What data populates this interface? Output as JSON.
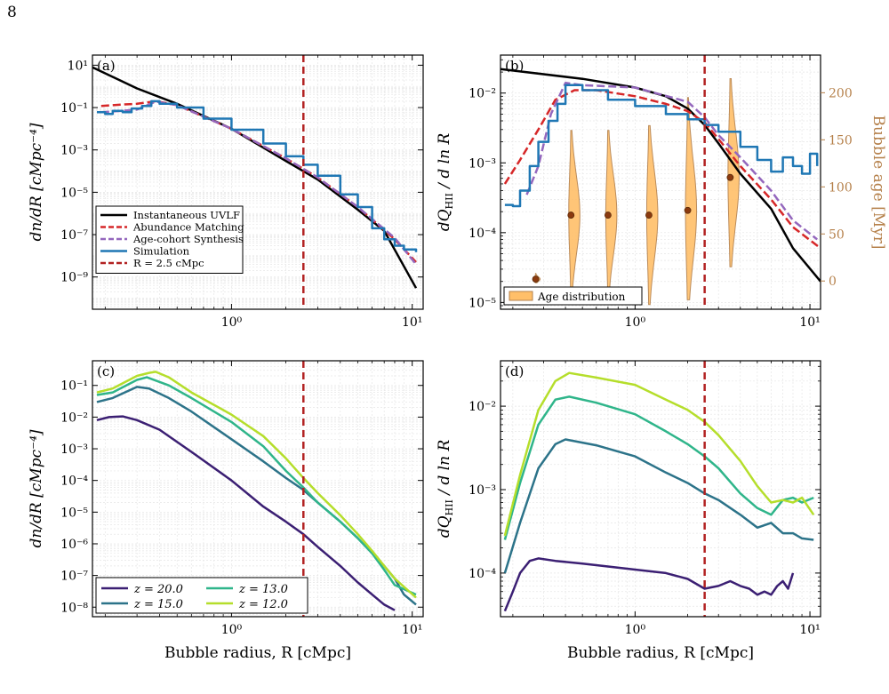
{
  "page": {
    "number": "8"
  },
  "colors": {
    "uvlf": "#000000",
    "abundance": "#d62728",
    "agecohort": "#9467bd",
    "simulation": "#1f77b4",
    "ref_line": "#b22222",
    "violin": "#ffbf69",
    "violin_edge": "#b5804a",
    "age_axis": "#b5804a",
    "z20": "#3b1f73",
    "z15": "#2c7389",
    "z13": "#2fb58a",
    "z12": "#b5de2b"
  },
  "chart_data": [
    {
      "panel": "(a)",
      "type": "line",
      "xscale": "log",
      "yscale": "log",
      "xlim": [
        0.17,
        11.5
      ],
      "ylim": [
        3e-11,
        30
      ],
      "xlabel": "",
      "ylabel": "dn/dR [cMpc⁻⁴]",
      "xticks": [
        {
          "v": 1,
          "label": "10⁰"
        },
        {
          "v": 10,
          "label": "10¹"
        }
      ],
      "yticks": [
        {
          "v": 10,
          "label": "10¹"
        },
        {
          "v": 0.1,
          "label": "10⁻¹"
        },
        {
          "v": 0.001,
          "label": "10⁻³"
        },
        {
          "v": 1e-05,
          "label": "10⁻⁵"
        },
        {
          "v": 1e-07,
          "label": "10⁻⁷"
        },
        {
          "v": 1e-09,
          "label": "10⁻⁹"
        }
      ],
      "vline": 2.5,
      "legend": {
        "placement": "lower-left",
        "entries": [
          "Instantaneous UVLF",
          "Abundance Matching",
          "Age-cohort Synthesis",
          "Simulation",
          "R = 2.5 cMpc"
        ]
      },
      "series": [
        {
          "name": "Instantaneous UVLF",
          "style": "solid",
          "color": "uvlf",
          "x": [
            0.17,
            0.3,
            0.5,
            1,
            2,
            3,
            5,
            7,
            10.5
          ],
          "y": [
            8,
            0.8,
            0.15,
            0.01,
            0.0003,
            4e-05,
            1.5e-06,
            1.5e-07,
            3e-10
          ]
        },
        {
          "name": "Abundance Matching",
          "style": "dashed",
          "color": "abundance",
          "x": [
            0.19,
            0.25,
            0.3,
            0.38,
            0.5,
            1,
            2,
            3,
            5,
            8,
            10.5
          ],
          "y": [
            0.12,
            0.14,
            0.15,
            0.2,
            0.13,
            0.01,
            0.0004,
            5e-05,
            2e-06,
            6e-08,
            5e-09
          ]
        },
        {
          "name": "Age-cohort Synthesis",
          "style": "dashed",
          "color": "agecohort",
          "x": [
            0.19,
            0.25,
            0.3,
            0.38,
            0.5,
            1,
            2,
            3,
            5,
            8,
            10.5
          ],
          "y": [
            0.06,
            0.07,
            0.08,
            0.19,
            0.13,
            0.01,
            0.0004,
            5e-05,
            2e-06,
            7e-08,
            4e-09
          ]
        },
        {
          "name": "Simulation",
          "style": "steps",
          "color": "simulation",
          "x": [
            0.18,
            0.2,
            0.22,
            0.25,
            0.28,
            0.32,
            0.36,
            0.4,
            0.5,
            0.7,
            1,
            1.5,
            2,
            2.5,
            3,
            4,
            5,
            6,
            7,
            8,
            9,
            10.5
          ],
          "y": [
            0.06,
            0.05,
            0.07,
            0.06,
            0.09,
            0.12,
            0.2,
            0.15,
            0.1,
            0.03,
            0.009,
            0.002,
            0.0005,
            0.0002,
            6e-05,
            8e-06,
            2e-06,
            2e-07,
            6e-08,
            3e-08,
            2e-08,
            1.5e-08
          ]
        }
      ]
    },
    {
      "panel": "(b)",
      "type": "line",
      "xscale": "log",
      "yscale": "log",
      "xlim": [
        0.17,
        11.5
      ],
      "ylim": [
        8e-06,
        0.035
      ],
      "xlabel": "",
      "ylabel": "dQ_HII / d ln R",
      "xticks": [
        {
          "v": 1,
          "label": "10⁰"
        },
        {
          "v": 10,
          "label": "10¹"
        }
      ],
      "yticks": [
        {
          "v": 0.01,
          "label": "10⁻²"
        },
        {
          "v": 0.001,
          "label": "10⁻³"
        },
        {
          "v": 0.0001,
          "label": "10⁻⁴"
        },
        {
          "v": 1e-05,
          "label": "10⁻⁵"
        }
      ],
      "vline": 2.5,
      "right_axis": {
        "label": "Bubble age [Myr]",
        "lim": [
          -30,
          240
        ],
        "ticks": [
          0,
          50,
          100,
          150,
          200
        ]
      },
      "legend": {
        "placement": "lower-left",
        "entries": [
          "Age distribution"
        ]
      },
      "series": [
        {
          "name": "Instantaneous UVLF",
          "style": "solid",
          "color": "uvlf",
          "x": [
            0.17,
            0.5,
            1,
            1.5,
            2,
            2.5,
            3,
            4,
            6,
            8,
            11.5
          ],
          "y": [
            0.022,
            0.016,
            0.012,
            0.009,
            0.006,
            0.0035,
            0.0019,
            0.0007,
            0.00022,
            6e-05,
            2e-05
          ]
        },
        {
          "name": "Abundance Matching",
          "style": "dashed",
          "color": "abundance",
          "x": [
            0.18,
            0.22,
            0.28,
            0.35,
            0.45,
            0.6,
            1,
            1.5,
            2,
            2.5,
            3,
            4,
            6,
            8,
            11.5
          ],
          "y": [
            0.0005,
            0.0011,
            0.003,
            0.008,
            0.011,
            0.011,
            0.009,
            0.007,
            0.0055,
            0.0038,
            0.0022,
            0.0009,
            0.0003,
            0.00012,
            6e-05
          ]
        },
        {
          "name": "Age-cohort Synthesis",
          "style": "dashed",
          "color": "agecohort",
          "x": [
            0.24,
            0.28,
            0.33,
            0.4,
            0.5,
            1,
            2,
            2.5,
            3,
            4,
            6,
            8,
            11
          ],
          "y": [
            0.00035,
            0.0009,
            0.005,
            0.014,
            0.013,
            0.012,
            0.0075,
            0.0045,
            0.0025,
            0.0012,
            0.0004,
            0.00015,
            8e-05
          ]
        },
        {
          "name": "Simulation",
          "style": "steps",
          "color": "simulation",
          "x": [
            0.18,
            0.2,
            0.22,
            0.25,
            0.28,
            0.32,
            0.36,
            0.4,
            0.5,
            0.7,
            1,
            1.5,
            2,
            2.5,
            3,
            4,
            5,
            6,
            7,
            8,
            9,
            10,
            11
          ],
          "y": [
            0.00025,
            0.00024,
            0.0004,
            0.0009,
            0.002,
            0.004,
            0.007,
            0.013,
            0.011,
            0.008,
            0.0065,
            0.005,
            0.0042,
            0.0035,
            0.0028,
            0.0017,
            0.0011,
            0.00075,
            0.0012,
            0.0009,
            0.0007,
            0.00135,
            0.0009
          ]
        }
      ],
      "violins": [
        {
          "x": 0.27,
          "median_age": 2,
          "min_age": -2,
          "max_age": 8
        },
        {
          "x": 0.43,
          "median_age": 70,
          "min_age": -10,
          "max_age": 160
        },
        {
          "x": 0.7,
          "median_age": 70,
          "min_age": -10,
          "max_age": 160
        },
        {
          "x": 1.2,
          "median_age": 70,
          "min_age": -25,
          "max_age": 165
        },
        {
          "x": 2.0,
          "median_age": 75,
          "min_age": -20,
          "max_age": 195
        },
        {
          "x": 3.5,
          "median_age": 110,
          "min_age": 15,
          "max_age": 215
        }
      ]
    },
    {
      "panel": "(c)",
      "type": "line",
      "xscale": "log",
      "yscale": "log",
      "xlim": [
        0.17,
        11.5
      ],
      "ylim": [
        5e-09,
        0.6
      ],
      "xlabel": "Bubble radius, R [cMpc]",
      "ylabel": "dn/dR [cMpc⁻⁴]",
      "xticks": [
        {
          "v": 1,
          "label": "10⁰"
        },
        {
          "v": 10,
          "label": "10¹"
        }
      ],
      "yticks": [
        {
          "v": 0.1,
          "label": "10⁻¹"
        },
        {
          "v": 0.01,
          "label": "10⁻²"
        },
        {
          "v": 0.001,
          "label": "10⁻³"
        },
        {
          "v": 0.0001,
          "label": "10⁻⁴"
        },
        {
          "v": 1e-05,
          "label": "10⁻⁵"
        },
        {
          "v": 1e-06,
          "label": "10⁻⁶"
        },
        {
          "v": 1e-07,
          "label": "10⁻⁷"
        },
        {
          "v": 1e-08,
          "label": "10⁻⁸"
        }
      ],
      "vline": 2.5,
      "legend": {
        "placement": "lower-left",
        "entries": [
          "z = 20.0",
          "z = 15.0",
          "z = 13.0",
          "z = 12.0"
        ]
      },
      "series": [
        {
          "name": "z = 20.0",
          "style": "solid",
          "color": "z20",
          "x": [
            0.18,
            0.21,
            0.25,
            0.3,
            0.4,
            0.6,
            1,
            1.5,
            2,
            2.5,
            3,
            4,
            5,
            6,
            7,
            8
          ],
          "y": [
            0.008,
            0.01,
            0.0105,
            0.008,
            0.004,
            0.0008,
            0.0001,
            1.5e-05,
            5e-06,
            2e-06,
            8e-07,
            2e-07,
            6e-08,
            2.5e-08,
            1.2e-08,
            8e-09
          ]
        },
        {
          "name": "z = 15.0",
          "style": "solid",
          "color": "z15",
          "x": [
            0.18,
            0.22,
            0.3,
            0.35,
            0.45,
            0.6,
            1,
            1.5,
            2,
            2.5,
            3,
            4,
            5,
            6,
            7,
            8,
            9,
            10.5
          ],
          "y": [
            0.03,
            0.04,
            0.09,
            0.08,
            0.04,
            0.015,
            0.002,
            0.0004,
            0.00012,
            5e-05,
            2e-05,
            5e-06,
            1.5e-06,
            5e-07,
            2e-07,
            8e-08,
            2.5e-08,
            1.2e-08
          ]
        },
        {
          "name": "z = 13.0",
          "style": "solid",
          "color": "z13",
          "x": [
            0.18,
            0.22,
            0.3,
            0.34,
            0.45,
            0.6,
            1,
            1.5,
            2,
            2.5,
            3,
            4,
            5,
            6,
            7,
            8,
            10.5
          ],
          "y": [
            0.05,
            0.06,
            0.15,
            0.18,
            0.1,
            0.04,
            0.007,
            0.0012,
            0.0002,
            6e-05,
            2e-05,
            5e-06,
            1.5e-06,
            5e-07,
            1.5e-07,
            5e-08,
            2.5e-08
          ]
        },
        {
          "name": "z = 12.0",
          "style": "solid",
          "color": "z12",
          "x": [
            0.18,
            0.22,
            0.3,
            0.35,
            0.38,
            0.45,
            0.6,
            1,
            1.5,
            2,
            2.5,
            3,
            4,
            5,
            6,
            7,
            8,
            10.5
          ],
          "y": [
            0.06,
            0.08,
            0.2,
            0.25,
            0.27,
            0.18,
            0.06,
            0.012,
            0.0025,
            0.0005,
            0.00012,
            4e-05,
            8e-06,
            2e-06,
            6e-07,
            2e-07,
            8e-08,
            2e-08
          ]
        }
      ]
    },
    {
      "panel": "(d)",
      "type": "line",
      "xscale": "log",
      "yscale": "log",
      "xlim": [
        0.17,
        11.5
      ],
      "ylim": [
        3e-05,
        0.035
      ],
      "xlabel": "Bubble radius, R [cMpc]",
      "ylabel": "dQ_HII / d ln R",
      "xticks": [
        {
          "v": 1,
          "label": "10⁰"
        },
        {
          "v": 10,
          "label": "10¹"
        }
      ],
      "yticks": [
        {
          "v": 0.01,
          "label": "10⁻²"
        },
        {
          "v": 0.001,
          "label": "10⁻³"
        },
        {
          "v": 0.0001,
          "label": "10⁻⁴"
        }
      ],
      "vline": 2.5,
      "series": [
        {
          "name": "z = 20.0",
          "style": "solid",
          "color": "z20",
          "x": [
            0.18,
            0.2,
            0.22,
            0.25,
            0.28,
            0.35,
            0.5,
            1,
            1.5,
            2,
            2.5,
            3,
            3.5,
            4,
            4.5,
            5,
            5.5,
            6,
            6.5,
            7,
            7.5,
            8
          ],
          "y": [
            3.5e-05,
            6e-05,
            0.0001,
            0.00014,
            0.00015,
            0.00014,
            0.00013,
            0.00011,
            0.0001,
            8.5e-05,
            6.5e-05,
            7e-05,
            8e-05,
            7e-05,
            6.5e-05,
            5.5e-05,
            6e-05,
            5.5e-05,
            7e-05,
            8e-05,
            6.5e-05,
            0.0001
          ]
        },
        {
          "name": "z = 15.0",
          "style": "solid",
          "color": "z15",
          "x": [
            0.18,
            0.22,
            0.28,
            0.35,
            0.4,
            0.6,
            1,
            1.5,
            2,
            2.5,
            3,
            4,
            5,
            6,
            7,
            8,
            9,
            10.5
          ],
          "y": [
            0.0001,
            0.0004,
            0.0018,
            0.0035,
            0.004,
            0.0034,
            0.0025,
            0.0016,
            0.0012,
            0.0009,
            0.00075,
            0.0005,
            0.00035,
            0.0004,
            0.0003,
            0.0003,
            0.00026,
            0.00025
          ]
        },
        {
          "name": "z = 13.0",
          "style": "solid",
          "color": "z13",
          "x": [
            0.18,
            0.22,
            0.28,
            0.35,
            0.42,
            0.6,
            1,
            1.5,
            2,
            2.5,
            3,
            4,
            5,
            6,
            7,
            8,
            9,
            10.5
          ],
          "y": [
            0.00025,
            0.0012,
            0.006,
            0.012,
            0.013,
            0.011,
            0.008,
            0.005,
            0.0035,
            0.0025,
            0.0018,
            0.0009,
            0.0006,
            0.0005,
            0.00075,
            0.0008,
            0.0007,
            0.0008
          ]
        },
        {
          "name": "z = 12.0",
          "style": "solid",
          "color": "z12",
          "x": [
            0.18,
            0.22,
            0.28,
            0.35,
            0.42,
            0.6,
            1,
            1.5,
            2,
            2.5,
            3,
            4,
            5,
            6,
            7,
            8,
            9,
            10.5
          ],
          "y": [
            0.00028,
            0.0015,
            0.009,
            0.02,
            0.025,
            0.022,
            0.018,
            0.012,
            0.009,
            0.0065,
            0.0045,
            0.0022,
            0.0011,
            0.0007,
            0.00075,
            0.0007,
            0.0008,
            0.0005
          ]
        }
      ]
    }
  ]
}
